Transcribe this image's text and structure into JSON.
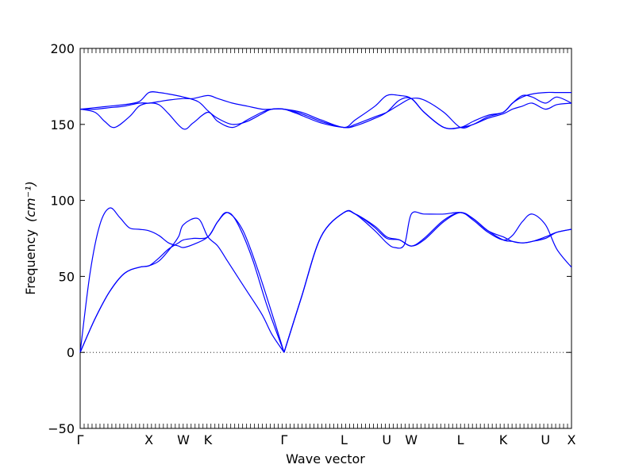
{
  "chart_data": {
    "type": "line",
    "title": "",
    "xlabel": "Wave vector",
    "ylabel": "Frequency",
    "ylabel_unit": "(cm⁻¹)",
    "ylim": [
      -50,
      200
    ],
    "yticks": [
      -50,
      0,
      50,
      100,
      150,
      200
    ],
    "ytick_labels": [
      "−50",
      "0",
      "50",
      "100",
      "150",
      "200"
    ],
    "xlim": [
      0,
      1
    ],
    "high_symmetry_points": [
      {
        "label": "Γ",
        "x": 0.0
      },
      {
        "label": "X",
        "x": 0.14
      },
      {
        "label": "W",
        "x": 0.21
      },
      {
        "label": "K",
        "x": 0.26
      },
      {
        "label": "Γ",
        "x": 0.415
      },
      {
        "label": "L",
        "x": 0.537
      },
      {
        "label": "U",
        "x": 0.624
      },
      {
        "label": "W",
        "x": 0.674
      },
      {
        "label": "L",
        "x": 0.774
      },
      {
        "label": "K",
        "x": 0.861
      },
      {
        "label": "U",
        "x": 0.947
      },
      {
        "label": "X",
        "x": 1.0
      }
    ],
    "zero_line": {
      "y": 0,
      "style": "dotted"
    },
    "grid": false,
    "legend": "none",
    "line_color": "#0000ff",
    "series": [
      {
        "x": [
          0,
          0.02,
          0.04,
          0.06,
          0.08,
          0.1,
          0.12,
          0.14,
          0.16,
          0.18,
          0.2,
          0.21,
          0.23,
          0.26,
          0.28,
          0.3,
          0.33,
          0.36,
          0.39,
          0.415
        ],
        "values": [
          0,
          52,
          84,
          95,
          89,
          82,
          81,
          80,
          77,
          72,
          70,
          69,
          71,
          76,
          86,
          92,
          81,
          56,
          26,
          0
        ]
      },
      {
        "x": [
          0,
          0.03,
          0.06,
          0.09,
          0.12,
          0.14,
          0.16,
          0.18,
          0.2,
          0.21,
          0.24,
          0.26,
          0.28,
          0.3,
          0.32,
          0.34,
          0.37,
          0.39,
          0.415
        ],
        "values": [
          0,
          22,
          40,
          52,
          56,
          57,
          60,
          67,
          76,
          84,
          88,
          76,
          70,
          60,
          50,
          40,
          25,
          12,
          0
        ]
      },
      {
        "x": [
          0,
          0.03,
          0.06,
          0.09,
          0.12,
          0.14,
          0.16,
          0.18,
          0.2,
          0.21,
          0.23,
          0.26,
          0.28,
          0.3,
          0.32,
          0.35,
          0.38,
          0.415
        ],
        "values": [
          0,
          22,
          40,
          52,
          56,
          57,
          62,
          68,
          72,
          74,
          75,
          76,
          86,
          92,
          85,
          62,
          31,
          0
        ]
      },
      {
        "x": [
          0.415,
          0.45,
          0.49,
          0.537,
          0.56,
          0.58,
          0.6,
          0.624,
          0.65,
          0.674,
          0.7,
          0.74,
          0.774,
          0.8,
          0.83,
          0.861,
          0.88,
          0.9,
          0.92,
          0.947,
          0.97,
          1.0
        ],
        "values": [
          0,
          36,
          76,
          92,
          91,
          87,
          82,
          75,
          74,
          70,
          75,
          87,
          92,
          87,
          79,
          74,
          77,
          86,
          91,
          84,
          68,
          56
        ]
      },
      {
        "x": [
          0.415,
          0.45,
          0.49,
          0.537,
          0.56,
          0.6,
          0.624,
          0.65,
          0.674,
          0.7,
          0.74,
          0.774,
          0.8,
          0.83,
          0.861,
          0.88,
          0.9,
          0.92,
          0.947,
          0.97,
          1.0
        ],
        "values": [
          0,
          36,
          76,
          92,
          91,
          83,
          76,
          74,
          70,
          74,
          86,
          92,
          88,
          80,
          76,
          73,
          72,
          73,
          76,
          79,
          81
        ]
      },
      {
        "x": [
          0.415,
          0.45,
          0.49,
          0.537,
          0.56,
          0.6,
          0.624,
          0.64,
          0.66,
          0.674,
          0.7,
          0.74,
          0.774,
          0.8,
          0.83,
          0.861,
          0.88,
          0.9,
          0.92,
          0.947,
          0.97,
          1.0
        ],
        "values": [
          0,
          36,
          76,
          92,
          91,
          80,
          72,
          69,
          71,
          91,
          91,
          91,
          92,
          88,
          80,
          74,
          73,
          72,
          73,
          75,
          79,
          81
        ]
      },
      {
        "x": [
          0,
          0.03,
          0.05,
          0.07,
          0.1,
          0.12,
          0.14,
          0.16,
          0.18,
          0.21,
          0.23,
          0.26,
          0.28,
          0.31,
          0.34,
          0.37,
          0.39,
          0.415,
          0.45,
          0.49,
          0.537,
          0.56,
          0.6,
          0.624,
          0.65,
          0.674,
          0.7,
          0.74,
          0.774,
          0.8,
          0.83,
          0.861,
          0.88,
          0.9,
          0.92,
          0.947,
          0.97,
          1.0
        ],
        "values": [
          160,
          158,
          152,
          148,
          155,
          162,
          164,
          163,
          157,
          147,
          151,
          158,
          152,
          148,
          153,
          158,
          160,
          160,
          156,
          151,
          148,
          149,
          154,
          158,
          166,
          167,
          158,
          148,
          148,
          152,
          156,
          158,
          164,
          168,
          170,
          171,
          171,
          171
        ]
      },
      {
        "x": [
          0,
          0.03,
          0.06,
          0.09,
          0.12,
          0.14,
          0.16,
          0.18,
          0.21,
          0.23,
          0.26,
          0.28,
          0.31,
          0.34,
          0.37,
          0.39,
          0.415,
          0.45,
          0.49,
          0.537,
          0.56,
          0.6,
          0.624,
          0.65,
          0.674,
          0.7,
          0.74,
          0.774,
          0.8,
          0.83,
          0.861,
          0.88,
          0.9,
          0.92,
          0.947,
          0.97,
          1.0
        ],
        "values": [
          160,
          160,
          161,
          162,
          164,
          164,
          165,
          166,
          167,
          167,
          169,
          167,
          164,
          162,
          160,
          160,
          160,
          157,
          152,
          148,
          150,
          155,
          158,
          163,
          167,
          166,
          158,
          148,
          150,
          154,
          157,
          160,
          162,
          164,
          160,
          163,
          164
        ]
      },
      {
        "x": [
          0,
          0.03,
          0.06,
          0.09,
          0.12,
          0.14,
          0.16,
          0.18,
          0.21,
          0.24,
          0.26,
          0.28,
          0.31,
          0.34,
          0.37,
          0.39,
          0.415,
          0.45,
          0.49,
          0.537,
          0.56,
          0.6,
          0.624,
          0.65,
          0.674,
          0.7,
          0.74,
          0.774,
          0.8,
          0.83,
          0.861,
          0.88,
          0.9,
          0.92,
          0.947,
          0.97,
          1.0
        ],
        "values": [
          160,
          161,
          162,
          163,
          165,
          171,
          171,
          170,
          168,
          165,
          159,
          154,
          150,
          152,
          157,
          160,
          160,
          158,
          153,
          148,
          153,
          162,
          169,
          169,
          167,
          158,
          148,
          148,
          150,
          155,
          158,
          164,
          169,
          168,
          164,
          168,
          164
        ]
      }
    ]
  }
}
